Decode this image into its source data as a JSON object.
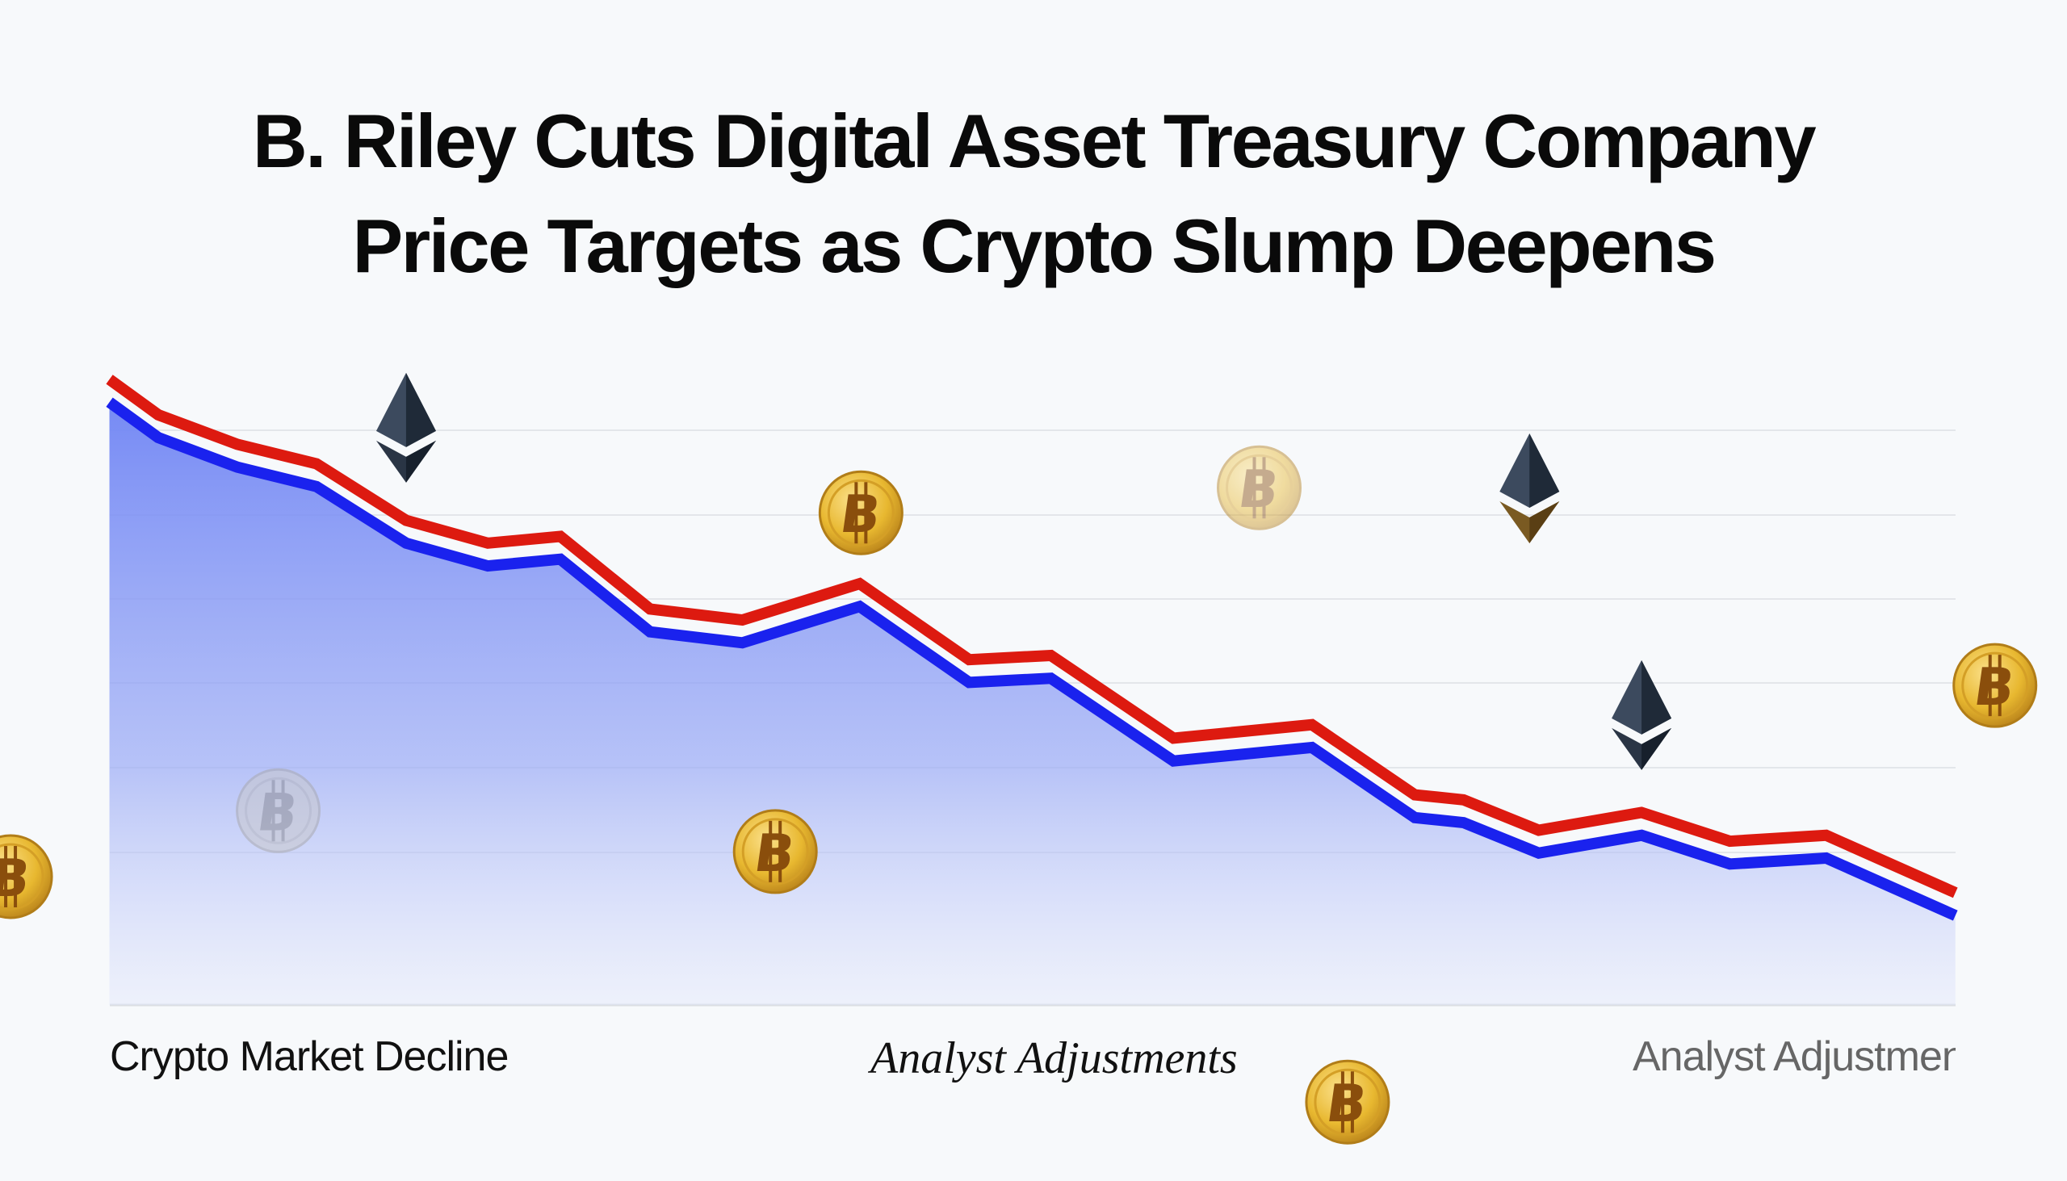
{
  "title": {
    "line1": "B. Riley Cuts Digital Asset Treasury Company",
    "line2": "Price Targets as Crypto Slump Deepens"
  },
  "labels": {
    "left": "Crypto Market Decline",
    "center": "Analyst Adjustments",
    "right": "Analyst Adjustmen"
  },
  "colors": {
    "red_line": "#dd1a10",
    "blue_line": "#1a22ee",
    "area_fill": "#7b8ff5",
    "coin_gold": "#e8b830",
    "eth_dark": "#2a3545"
  },
  "chart_data": {
    "type": "area",
    "title": "",
    "xlabel": "",
    "ylabel": "",
    "grid": true,
    "ylim": [
      0,
      7.5
    ],
    "series": [
      {
        "color": "#dd1a10",
        "values": [
          7.41,
          6.99,
          6.64,
          6.41,
          5.74,
          5.47,
          5.55,
          4.69,
          4.56,
          4.99,
          4.09,
          4.14,
          3.16,
          3.32,
          2.49,
          2.43,
          2.07,
          2.28,
          1.94,
          2.01,
          1.33
        ]
      },
      {
        "color": "#1a22ee",
        "values": [
          7.14,
          6.72,
          6.37,
          6.14,
          5.47,
          5.2,
          5.28,
          4.42,
          4.29,
          4.72,
          3.82,
          3.87,
          2.89,
          3.05,
          2.22,
          2.16,
          1.8,
          2.01,
          1.67,
          1.74,
          1.06
        ]
      }
    ],
    "decorations": [
      "bitcoin-coin",
      "bitcoin-coin",
      "bitcoin-coin",
      "bitcoin-coin",
      "bitcoin-coin",
      "bitcoin-coin",
      "bitcoin-coin",
      "ethereum-logo",
      "ethereum-logo",
      "ethereum-logo"
    ]
  }
}
